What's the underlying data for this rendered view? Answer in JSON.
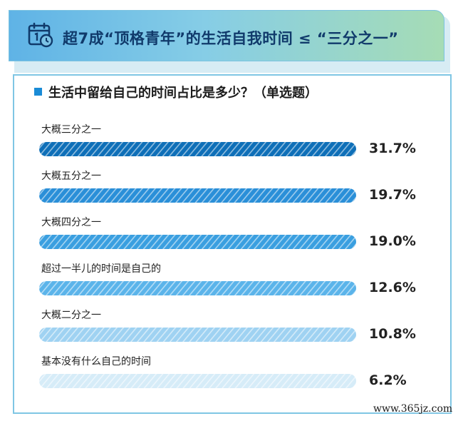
{
  "header": {
    "title": "超7成“顶格青年”的生活自我时间 ≤ “三分之一”",
    "icon": "calendar-clock-icon"
  },
  "question": "生活中留给自己的时间占比是多少？（单选题）",
  "watermark": "www.365jz.com",
  "chart_data": {
    "type": "bar",
    "orientation": "horizontal",
    "categories": [
      "大概三分之一",
      "大概五分之一",
      "大概四分之一",
      "超过一半儿的时间是自己的",
      "大概二分之一",
      "基本没有什么自己的时间"
    ],
    "values": [
      31.7,
      19.7,
      19.0,
      12.6,
      10.8,
      6.2
    ],
    "value_labels": [
      "31.7%",
      "19.7%",
      "19.0%",
      "12.6%",
      "10.8%",
      "6.2%"
    ],
    "unit": "%",
    "title": "",
    "xlabel": "",
    "ylabel": "",
    "bar_fill": "striped",
    "colors": [
      "#0e6fb8",
      "#2a8fd8",
      "#3a9fe0",
      "#5bb4ea",
      "#9fd2f2",
      "#d6ecf8"
    ],
    "grid": false,
    "legend": "none"
  }
}
